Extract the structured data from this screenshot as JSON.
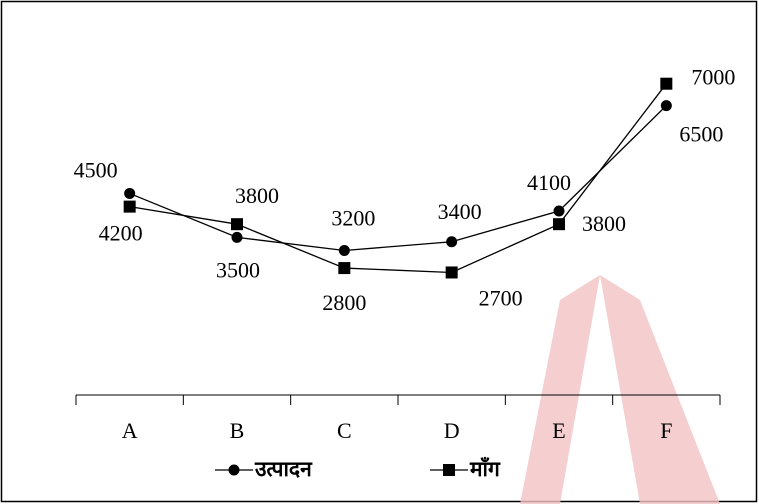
{
  "chart_data": {
    "type": "line",
    "categories": [
      "A",
      "B",
      "C",
      "D",
      "E",
      "F"
    ],
    "series": [
      {
        "name": "उत्पादन",
        "color": "#000000",
        "marker": "circle",
        "values": [
          4500,
          3500,
          3200,
          3400,
          4100,
          6500
        ]
      },
      {
        "name": "माँग",
        "color": "#000000",
        "marker": "square",
        "values": [
          4200,
          3800,
          2800,
          2700,
          3800,
          7000
        ]
      }
    ]
  }
}
